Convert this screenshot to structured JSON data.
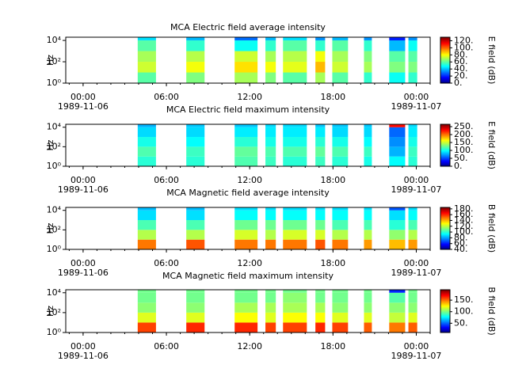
{
  "chart_data": [
    {
      "type": "heatmap",
      "title": "MCA  Electric field average intensity",
      "ylabel": "Hz",
      "ylog": true,
      "ylim": [
        1,
        20000
      ],
      "yticks": [
        {
          "value": 1,
          "label": "10⁰"
        },
        {
          "value": 100,
          "label": "10²"
        },
        {
          "value": 10000,
          "label": "10⁴"
        }
      ],
      "xlim": [
        "1989-11-05 22:45",
        "1989-11-07 01:00"
      ],
      "xticks": [
        {
          "value": "1989-11-06 00:00",
          "label": "00:00"
        },
        {
          "value": "1989-11-06 06:00",
          "label": "06:00"
        },
        {
          "value": "1989-11-06 12:00",
          "label": "12:00"
        },
        {
          "value": "1989-11-06 18:00",
          "label": "18:00"
        },
        {
          "value": "1989-11-07 00:00",
          "label": "00:00"
        }
      ],
      "xtick_dates": [
        {
          "value": "1989-11-06 00:00",
          "label": "1989-11-06"
        },
        {
          "value": "1989-11-07 00:00",
          "label": "1989-11-07"
        }
      ],
      "x_start": [
        "1989-11-06 03:56",
        "1989-11-06 07:26",
        "1989-11-06 10:55",
        "1989-11-06 13:08",
        "1989-11-06 14:24",
        "1989-11-06 16:44",
        "1989-11-06 17:57",
        "1989-11-06 20:14",
        "1989-11-06 22:03",
        "1989-11-06 23:26"
      ],
      "x_end": [
        "1989-11-06 05:15",
        "1989-11-06 08:45",
        "1989-11-06 12:34",
        "1989-11-06 13:53",
        "1989-11-06 16:07",
        "1989-11-06 17:26",
        "1989-11-06 19:05",
        "1989-11-06 20:48",
        "1989-11-06 23:12",
        "1989-11-07 00:04"
      ],
      "y_edges": [
        1,
        10,
        100,
        1000,
        10000,
        20000
      ],
      "values": [
        [
          60,
          75,
          70,
          60,
          45
        ],
        [
          65,
          80,
          72,
          55,
          40
        ],
        [
          70,
          85,
          75,
          50,
          30
        ],
        [
          65,
          80,
          70,
          55,
          40
        ],
        [
          60,
          78,
          72,
          60,
          45
        ],
        [
          70,
          90,
          80,
          55,
          35
        ],
        [
          60,
          75,
          70,
          60,
          40
        ],
        [
          55,
          70,
          65,
          55,
          35
        ],
        [
          50,
          65,
          60,
          40,
          20
        ],
        [
          55,
          65,
          60,
          50,
          35
        ]
      ],
      "colormap": "jet",
      "colorbar_label": "E field (dB)",
      "clim": [
        0,
        130
      ],
      "cticks": [
        {
          "value": 0,
          "label": "0."
        },
        {
          "value": 20,
          "label": "20."
        },
        {
          "value": 40,
          "label": "40."
        },
        {
          "value": 60,
          "label": "60."
        },
        {
          "value": 80,
          "label": "80."
        },
        {
          "value": 100,
          "label": "100."
        },
        {
          "value": 120,
          "label": "120."
        }
      ]
    },
    {
      "type": "heatmap",
      "title": "MCA  Electric field maximum intensity",
      "ylabel": "Hz",
      "ylog": true,
      "ylim": [
        1,
        20000
      ],
      "yticks": [
        {
          "value": 1,
          "label": "10⁰"
        },
        {
          "value": 100,
          "label": "10²"
        },
        {
          "value": 10000,
          "label": "10⁴"
        }
      ],
      "xlim": [
        "1989-11-05 22:45",
        "1989-11-07 01:00"
      ],
      "xticks": [
        {
          "value": "1989-11-06 00:00",
          "label": "00:00"
        },
        {
          "value": "1989-11-06 06:00",
          "label": "06:00"
        },
        {
          "value": "1989-11-06 12:00",
          "label": "12:00"
        },
        {
          "value": "1989-11-06 18:00",
          "label": "18:00"
        },
        {
          "value": "1989-11-07 00:00",
          "label": "00:00"
        }
      ],
      "xtick_dates": [
        {
          "value": "1989-11-06 00:00",
          "label": "1989-11-06"
        },
        {
          "value": "1989-11-07 00:00",
          "label": "1989-11-07"
        }
      ],
      "x_start": [
        "1989-11-06 03:56",
        "1989-11-06 07:26",
        "1989-11-06 10:55",
        "1989-11-06 13:08",
        "1989-11-06 14:24",
        "1989-11-06 16:44",
        "1989-11-06 17:57",
        "1989-11-06 20:14",
        "1989-11-06 22:03",
        "1989-11-06 23:26"
      ],
      "x_end": [
        "1989-11-06 05:15",
        "1989-11-06 08:45",
        "1989-11-06 12:34",
        "1989-11-06 13:53",
        "1989-11-06 16:07",
        "1989-11-06 17:26",
        "1989-11-06 19:05",
        "1989-11-06 20:48",
        "1989-11-06 23:12",
        "1989-11-07 00:04"
      ],
      "y_edges": [
        1,
        10,
        100,
        1000,
        10000,
        20000
      ],
      "values": [
        [
          110,
          120,
          105,
          90,
          80
        ],
        [
          110,
          115,
          100,
          90,
          85
        ],
        [
          120,
          125,
          110,
          95,
          85
        ],
        [
          115,
          120,
          105,
          95,
          90
        ],
        [
          110,
          120,
          105,
          95,
          90
        ],
        [
          115,
          125,
          110,
          95,
          85
        ],
        [
          110,
          120,
          105,
          90,
          85
        ],
        [
          105,
          115,
          100,
          90,
          85
        ],
        [
          100,
          80,
          70,
          60,
          230
        ],
        [
          110,
          115,
          105,
          95,
          90
        ]
      ],
      "colormap": "jet",
      "colorbar_label": "E field (dB)",
      "clim": [
        0,
        265
      ],
      "cticks": [
        {
          "value": 0,
          "label": "0."
        },
        {
          "value": 50,
          "label": "50."
        },
        {
          "value": 100,
          "label": "100."
        },
        {
          "value": 150,
          "label": "150."
        },
        {
          "value": 200,
          "label": "200."
        },
        {
          "value": 250,
          "label": "250."
        }
      ]
    },
    {
      "type": "heatmap",
      "title": "MCA  Magnetic field average intensity",
      "ylabel": "Hz",
      "ylog": true,
      "ylim": [
        1,
        20000
      ],
      "yticks": [
        {
          "value": 1,
          "label": "10⁰"
        },
        {
          "value": 100,
          "label": "10²"
        },
        {
          "value": 10000,
          "label": "10⁴"
        }
      ],
      "xlim": [
        "1989-11-05 22:45",
        "1989-11-07 01:00"
      ],
      "xticks": [
        {
          "value": "1989-11-06 00:00",
          "label": "00:00"
        },
        {
          "value": "1989-11-06 06:00",
          "label": "06:00"
        },
        {
          "value": "1989-11-06 12:00",
          "label": "12:00"
        },
        {
          "value": "1989-11-06 18:00",
          "label": "18:00"
        },
        {
          "value": "1989-11-07 00:00",
          "label": "00:00"
        }
      ],
      "xtick_dates": [
        {
          "value": "1989-11-06 00:00",
          "label": "1989-11-06"
        },
        {
          "value": "1989-11-07 00:00",
          "label": "1989-11-07"
        }
      ],
      "x_start": [
        "1989-11-06 03:56",
        "1989-11-06 07:26",
        "1989-11-06 10:55",
        "1989-11-06 13:08",
        "1989-11-06 14:24",
        "1989-11-06 16:44",
        "1989-11-06 17:57",
        "1989-11-06 20:14",
        "1989-11-06 22:03",
        "1989-11-06 23:26"
      ],
      "x_end": [
        "1989-11-06 05:15",
        "1989-11-06 08:45",
        "1989-11-06 12:34",
        "1989-11-06 13:53",
        "1989-11-06 16:07",
        "1989-11-06 17:26",
        "1989-11-06 19:05",
        "1989-11-06 20:48",
        "1989-11-06 23:12",
        "1989-11-07 00:04"
      ],
      "y_edges": [
        1,
        10,
        100,
        1000,
        10000,
        20000
      ],
      "values": [
        [
          150,
          120,
          105,
          90,
          85
        ],
        [
          155,
          120,
          105,
          90,
          85
        ],
        [
          150,
          125,
          110,
          95,
          90
        ],
        [
          150,
          120,
          110,
          95,
          90
        ],
        [
          150,
          125,
          110,
          95,
          90
        ],
        [
          155,
          125,
          110,
          95,
          90
        ],
        [
          150,
          120,
          105,
          95,
          90
        ],
        [
          145,
          120,
          105,
          95,
          90
        ],
        [
          140,
          115,
          100,
          90,
          70
        ],
        [
          145,
          120,
          105,
          95,
          90
        ]
      ],
      "colormap": "jet",
      "colorbar_label": "B field (dB)",
      "clim": [
        40,
        185
      ],
      "cticks": [
        {
          "value": 40,
          "label": "40."
        },
        {
          "value": 60,
          "label": "60."
        },
        {
          "value": 80,
          "label": "80."
        },
        {
          "value": 100,
          "label": "100."
        },
        {
          "value": 120,
          "label": "120."
        },
        {
          "value": 140,
          "label": "140."
        },
        {
          "value": 160,
          "label": "160."
        },
        {
          "value": 180,
          "label": "180."
        }
      ]
    },
    {
      "type": "heatmap",
      "title": "MCA  Magnetic field maximum intensity",
      "ylabel": "Hz",
      "ylog": true,
      "ylim": [
        1,
        20000
      ],
      "yticks": [
        {
          "value": 1,
          "label": "10⁰"
        },
        {
          "value": 100,
          "label": "10²"
        },
        {
          "value": 10000,
          "label": "10⁴"
        }
      ],
      "xlim": [
        "1989-11-05 22:45",
        "1989-11-07 01:00"
      ],
      "xticks": [
        {
          "value": "1989-11-06 00:00",
          "label": "00:00"
        },
        {
          "value": "1989-11-06 06:00",
          "label": "06:00"
        },
        {
          "value": "1989-11-06 12:00",
          "label": "12:00"
        },
        {
          "value": "1989-11-06 18:00",
          "label": "18:00"
        },
        {
          "value": "1989-11-07 00:00",
          "label": "00:00"
        }
      ],
      "xtick_dates": [
        {
          "value": "1989-11-06 00:00",
          "label": "1989-11-06"
        },
        {
          "value": "1989-11-07 00:00",
          "label": "1989-11-07"
        }
      ],
      "x_start": [
        "1989-11-06 03:56",
        "1989-11-06 07:26",
        "1989-11-06 10:55",
        "1989-11-06 13:08",
        "1989-11-06 14:24",
        "1989-11-06 16:44",
        "1989-11-06 17:57",
        "1989-11-06 20:14",
        "1989-11-06 22:03",
        "1989-11-06 23:26"
      ],
      "x_end": [
        "1989-11-06 05:15",
        "1989-11-06 08:45",
        "1989-11-06 12:34",
        "1989-11-06 13:53",
        "1989-11-06 16:07",
        "1989-11-06 17:26",
        "1989-11-06 19:05",
        "1989-11-06 20:48",
        "1989-11-06 23:12",
        "1989-11-07 00:04"
      ],
      "y_edges": [
        1,
        10,
        100,
        1000,
        10000,
        20000
      ],
      "values": [
        [
          160,
          120,
          105,
          100,
          100
        ],
        [
          165,
          120,
          105,
          100,
          100
        ],
        [
          165,
          125,
          110,
          100,
          100
        ],
        [
          160,
          120,
          110,
          100,
          100
        ],
        [
          160,
          125,
          110,
          105,
          100
        ],
        [
          165,
          125,
          110,
          100,
          100
        ],
        [
          160,
          120,
          105,
          100,
          100
        ],
        [
          155,
          120,
          105,
          100,
          100
        ],
        [
          150,
          115,
          105,
          95,
          40
        ],
        [
          155,
          120,
          105,
          100,
          100
        ]
      ],
      "colormap": "jet",
      "colorbar_label": "B field (dB)",
      "clim": [
        10,
        195
      ],
      "cticks": [
        {
          "value": 50,
          "label": "50."
        },
        {
          "value": 100,
          "label": "100."
        },
        {
          "value": 150,
          "label": "150."
        }
      ]
    }
  ]
}
